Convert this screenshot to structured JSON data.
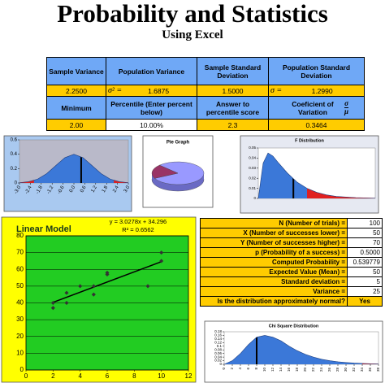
{
  "header": {
    "title": "Probability and Statistics",
    "subtitle": "Using Excel"
  },
  "table": {
    "rows": [
      [
        {
          "text": "Sample Variance"
        },
        {
          "text": "Population Variance"
        },
        {
          "text": "Sample Standard Deviation"
        },
        {
          "text": "Population Standard Deviation"
        }
      ],
      [
        {
          "text": "2.2500"
        },
        {
          "symbol": "σ² =",
          "text": "1.6875"
        },
        {
          "text": "1.5000"
        },
        {
          "symbol": "σ =",
          "text": "1.2990"
        }
      ],
      [
        {
          "text": "Minimum"
        },
        {
          "text": "Percentile (Enter percent below)"
        },
        {
          "text": "Answer to percentile score"
        },
        {
          "text": "Coeficient of Variation",
          "numerator": "σ",
          "denominator": "μ"
        }
      ],
      [
        {
          "text": "2.00"
        },
        {
          "text": "10.00%"
        },
        {
          "text": "2.3"
        },
        {
          "text": "0.3464"
        }
      ]
    ]
  },
  "chart_data": [
    {
      "type": "area",
      "x": [
        -3,
        -2.5,
        -2,
        -1.5,
        -1,
        -0.5,
        0,
        0.5,
        1,
        1.5,
        2,
        2.5,
        3
      ],
      "values": [
        0.004,
        0.018,
        0.054,
        0.13,
        0.242,
        0.352,
        0.399,
        0.352,
        0.242,
        0.13,
        0.054,
        0.018,
        0.004
      ],
      "xlim": [
        -3,
        3
      ],
      "ylim": [
        0,
        0.6
      ],
      "yticks": [
        0,
        0.2,
        0.4,
        0.6
      ],
      "xticks": [
        {
          "value": -3,
          "label": "-3.0"
        },
        {
          "value": -2.4,
          "label": "-2.4"
        },
        {
          "value": -1.8,
          "label": "-1.8"
        },
        {
          "value": -1.2,
          "label": "-1.2"
        },
        {
          "value": -0.6,
          "label": "-0.6"
        },
        {
          "value": 0,
          "label": "0.0"
        },
        {
          "value": 0.6,
          "label": "0.6"
        },
        {
          "value": 1.2,
          "label": "1.2"
        },
        {
          "value": 1.8,
          "label": "1.8"
        },
        {
          "value": 2.4,
          "label": "2.4"
        },
        {
          "value": 3,
          "label": "3.0"
        }
      ],
      "color": "#3b78d8",
      "tail_color": "#e02020",
      "shade_below": -2.2,
      "shade_above": 2.2,
      "marker_x": 0.4
    },
    {
      "type": "pie",
      "title": "Pie Graph",
      "values": [
        80,
        20
      ],
      "colors": [
        "#9999ff",
        "#993366"
      ]
    },
    {
      "type": "area",
      "title": "F Distribution",
      "x": [
        0,
        0.25,
        0.5,
        0.75,
        1,
        1.5,
        2,
        2.5,
        3,
        3.5,
        4,
        5,
        6
      ],
      "values": [
        0,
        0.035,
        0.045,
        0.042,
        0.036,
        0.025,
        0.016,
        0.01,
        0.006,
        0.0035,
        0.002,
        0.0008,
        0.0003
      ],
      "xlim": [
        0,
        6
      ],
      "ylim": [
        0,
        0.05
      ],
      "yticks": [
        0,
        0.01,
        0.02,
        0.03,
        0.04,
        0.05
      ],
      "color": "#3b78d8",
      "tail_color": "#e02020",
      "shade_above": 2.5,
      "marker_x": 1.8
    },
    {
      "type": "scatter",
      "title": "Linear Model",
      "x": [
        2,
        2,
        3,
        3,
        4,
        5,
        5,
        6,
        6,
        9,
        10,
        10
      ],
      "values": [
        37,
        40,
        40,
        46,
        50,
        45,
        50,
        57,
        58,
        50,
        65,
        70
      ],
      "xlim": [
        0,
        12
      ],
      "ylim": [
        0,
        80
      ],
      "xticks": [
        0,
        2,
        4,
        6,
        8,
        10,
        12
      ],
      "yticks": [
        0,
        10,
        20,
        30,
        40,
        50,
        60,
        70,
        80
      ],
      "grid": true,
      "color": "#333333",
      "trendline": {
        "slope": 3.0278,
        "intercept": 34.296,
        "equation": "y = 3.0278x + 34.296",
        "r_squared": "R² = 0.6562"
      }
    },
    {
      "type": "area",
      "title": "Chi Square Distribution",
      "x": [
        0,
        2,
        4,
        6,
        8,
        10,
        12,
        14,
        16,
        18,
        20,
        22,
        24,
        26,
        28,
        30,
        32,
        34,
        36,
        38
      ],
      "values": [
        0,
        0.02,
        0.06,
        0.11,
        0.15,
        0.16,
        0.15,
        0.13,
        0.1,
        0.075,
        0.055,
        0.04,
        0.028,
        0.02,
        0.014,
        0.01,
        0.007,
        0.005,
        0.003,
        0.002
      ],
      "xlim": [
        0,
        38
      ],
      "ylim": [
        0,
        0.18
      ],
      "yticks": [
        0,
        0.02,
        0.04,
        0.06,
        0.08,
        0.1,
        0.12,
        0.14,
        0.16,
        0.18
      ],
      "xticks": [
        0,
        2,
        4,
        6,
        8,
        10,
        12,
        14,
        16,
        18,
        20,
        22,
        24,
        26,
        28,
        30,
        32,
        34,
        36,
        38
      ],
      "color": "#3b78d8",
      "tail_color": "#e02020",
      "shade_above": 34,
      "marker_x": 8
    }
  ],
  "results": {
    "rows": [
      {
        "label": "N (Number of trials) =",
        "value": "100"
      },
      {
        "label": "X (Number of successes lower) =",
        "value": "50"
      },
      {
        "label": "Y (Number of successes higher) =",
        "value": "70"
      },
      {
        "label": "p (Probability of a success) =",
        "value": "0.5000"
      },
      {
        "label": "Computed Probability =",
        "value": "0.539779"
      },
      {
        "label": "Expected Value (Mean) =",
        "value": "50"
      },
      {
        "label": "Standard deviation =",
        "value": "5"
      },
      {
        "label": "Variance =",
        "value": "25"
      },
      {
        "label": "Is the distribution approximately normal?",
        "value": "Yes"
      }
    ]
  }
}
